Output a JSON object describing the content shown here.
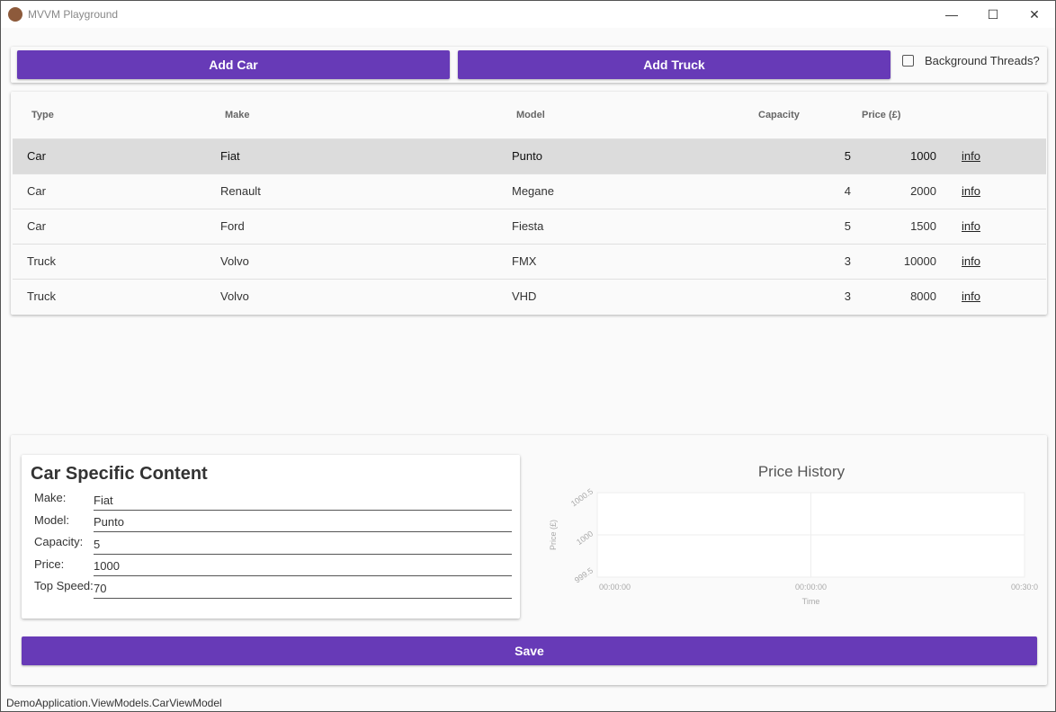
{
  "window": {
    "title": "MVVM Playground",
    "minimize": "—",
    "maximize": "☐",
    "close": "✕"
  },
  "toolbar": {
    "add_car": "Add Car",
    "add_truck": "Add Truck",
    "background_threads": "Background Threads?",
    "background_threads_checked": false
  },
  "table": {
    "columns": [
      "Type",
      "Make",
      "Model",
      "Capacity",
      "Price (£)"
    ],
    "rows": [
      {
        "type": "Car",
        "make": "Fiat",
        "model": "Punto",
        "capacity": "5",
        "price": "1000",
        "link": "info",
        "selected": true
      },
      {
        "type": "Car",
        "make": "Renault",
        "model": "Megane",
        "capacity": "4",
        "price": "2000",
        "link": "info"
      },
      {
        "type": "Car",
        "make": "Ford",
        "model": "Fiesta",
        "capacity": "5",
        "price": "1500",
        "link": "info"
      },
      {
        "type": "Truck",
        "make": "Volvo",
        "model": "FMX",
        "capacity": "3",
        "price": "10000",
        "link": "info"
      },
      {
        "type": "Truck",
        "make": "Volvo",
        "model": "VHD",
        "capacity": "3",
        "price": "8000",
        "link": "info"
      }
    ]
  },
  "details": {
    "title": "Car Specific Content",
    "fields": [
      {
        "label": "Make:",
        "value": "Fiat"
      },
      {
        "label": "Model:",
        "value": "Punto"
      },
      {
        "label": "Capacity:",
        "value": "5"
      },
      {
        "label": "Price:",
        "value": "1000"
      },
      {
        "label": "Top Speed:",
        "value": "70"
      }
    ]
  },
  "chart_data": {
    "type": "line",
    "title": "Price History",
    "xlabel": "Time",
    "ylabel": "Price (£)",
    "y_ticks": [
      "1000.5",
      "1000",
      "999.5"
    ],
    "x_ticks": [
      "00:00:00",
      "00:00:00",
      "00:30:0"
    ],
    "ylim": [
      999.5,
      1000.5
    ],
    "grid": true,
    "series": []
  },
  "save": "Save",
  "status": "DemoApplication.ViewModels.CarViewModel",
  "colors": {
    "accent": "#673ab7",
    "selected_row": "#dcdcdc"
  }
}
